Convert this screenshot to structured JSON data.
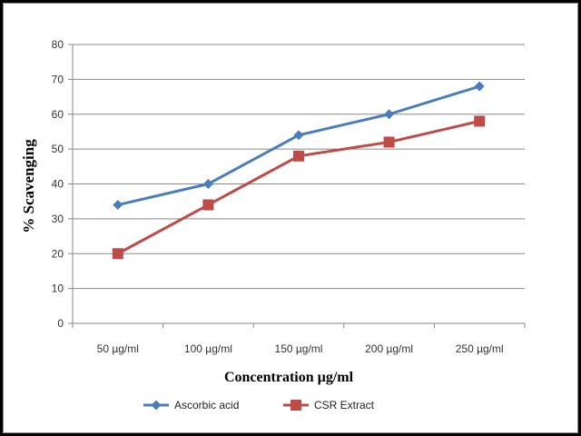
{
  "chart_data": {
    "type": "line",
    "categories": [
      "50 µg/ml",
      "100 µg/ml",
      "150 µg/ml",
      "200 µg/ml",
      "250 µg/ml"
    ],
    "series": [
      {
        "name": "Ascorbic acid",
        "values": [
          34,
          40,
          54,
          60,
          68
        ],
        "color": "#4a7ebb",
        "marker": "diamond"
      },
      {
        "name": "CSR Extract",
        "values": [
          20,
          34,
          48,
          52,
          58
        ],
        "color": "#be4b48",
        "marker": "square"
      }
    ],
    "title": "",
    "xlabel": "Concentration µg/ml",
    "ylabel": "% Scavenging",
    "ylim": [
      0,
      80
    ],
    "yticks": [
      0,
      10,
      20,
      30,
      40,
      50,
      60,
      70,
      80
    ],
    "grid": true,
    "legend": "bottom"
  }
}
